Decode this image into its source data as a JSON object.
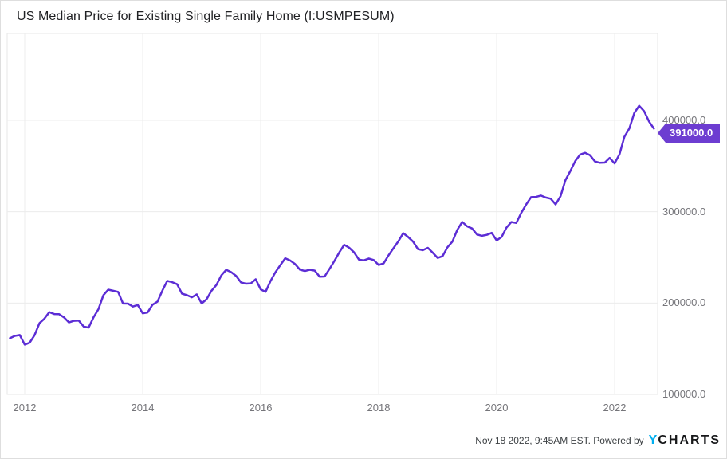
{
  "title": "US Median Price for Existing Single Family Home (I:USMPESUM)",
  "badge": {
    "value_label": "391000.0"
  },
  "attribution": {
    "text": "Nov 18 2022, 9:45AM EST. Powered by",
    "logo_y": "Y",
    "logo_charts": "CHARTS"
  },
  "colors": {
    "line": "#5c2dd5",
    "badge": "#6d3dd1",
    "grid": "#ececec",
    "plot_border": "#e7e7e7",
    "axis_text": "#75757a",
    "title_text": "#202124",
    "logo_y_blue": "#00aeef",
    "logo_charts_black": "#17181a"
  },
  "y_axis": {
    "tick_labels": [
      "400000.0",
      "300000.0",
      "200000.0",
      "100000.0"
    ],
    "tick_values": [
      400000,
      300000,
      200000,
      100000
    ]
  },
  "x_axis": {
    "tick_labels": [
      "2012",
      "2014",
      "2016",
      "2018",
      "2020",
      "2022"
    ],
    "tick_values": [
      2012,
      2014,
      2016,
      2018,
      2020,
      2022
    ]
  },
  "chart_data": {
    "type": "line",
    "title": "US Median Price for Existing Single Family Home (I:USMPESUM)",
    "series_name": "US Median Price for Existing Single Family Home",
    "frequency": "monthly",
    "xlim": [
      "2011-10",
      "2022-09"
    ],
    "ylim": [
      100000,
      495000
    ],
    "y_gridlines": [
      200000,
      300000,
      400000
    ],
    "grid": true,
    "legend": false,
    "last_value": 391000,
    "x": [
      "2011-10",
      "2011-11",
      "2011-12",
      "2012-01",
      "2012-02",
      "2012-03",
      "2012-04",
      "2012-05",
      "2012-06",
      "2012-07",
      "2012-08",
      "2012-09",
      "2012-10",
      "2012-11",
      "2012-12",
      "2013-01",
      "2013-02",
      "2013-03",
      "2013-04",
      "2013-05",
      "2013-06",
      "2013-07",
      "2013-08",
      "2013-09",
      "2013-10",
      "2013-11",
      "2013-12",
      "2014-01",
      "2014-02",
      "2014-03",
      "2014-04",
      "2014-05",
      "2014-06",
      "2014-07",
      "2014-08",
      "2014-09",
      "2014-10",
      "2014-11",
      "2014-12",
      "2015-01",
      "2015-02",
      "2015-03",
      "2015-04",
      "2015-05",
      "2015-06",
      "2015-07",
      "2015-08",
      "2015-09",
      "2015-10",
      "2015-11",
      "2015-12",
      "2016-01",
      "2016-02",
      "2016-03",
      "2016-04",
      "2016-05",
      "2016-06",
      "2016-07",
      "2016-08",
      "2016-09",
      "2016-10",
      "2016-11",
      "2016-12",
      "2017-01",
      "2017-02",
      "2017-03",
      "2017-04",
      "2017-05",
      "2017-06",
      "2017-07",
      "2017-08",
      "2017-09",
      "2017-10",
      "2017-11",
      "2017-12",
      "2018-01",
      "2018-02",
      "2018-03",
      "2018-04",
      "2018-05",
      "2018-06",
      "2018-07",
      "2018-08",
      "2018-09",
      "2018-10",
      "2018-11",
      "2018-12",
      "2019-01",
      "2019-02",
      "2019-03",
      "2019-04",
      "2019-05",
      "2019-06",
      "2019-07",
      "2019-08",
      "2019-09",
      "2019-10",
      "2019-11",
      "2019-12",
      "2020-01",
      "2020-02",
      "2020-03",
      "2020-04",
      "2020-05",
      "2020-06",
      "2020-07",
      "2020-08",
      "2020-09",
      "2020-10",
      "2020-11",
      "2020-12",
      "2021-01",
      "2021-02",
      "2021-03",
      "2021-04",
      "2021-05",
      "2021-06",
      "2021-07",
      "2021-08",
      "2021-09",
      "2021-10",
      "2021-11",
      "2021-12",
      "2022-01",
      "2022-02",
      "2022-03",
      "2022-04",
      "2022-05",
      "2022-06",
      "2022-07",
      "2022-08",
      "2022-09"
    ],
    "values": [
      161600,
      164100,
      165100,
      154600,
      156600,
      164800,
      178000,
      182900,
      190100,
      188000,
      187800,
      184300,
      178800,
      180600,
      180800,
      174300,
      173200,
      184300,
      193300,
      208700,
      214700,
      213500,
      212200,
      199500,
      199400,
      196200,
      197900,
      188900,
      189700,
      198200,
      201500,
      213600,
      224300,
      222900,
      220600,
      210300,
      208700,
      206300,
      209500,
      199600,
      204200,
      213500,
      219800,
      230300,
      236400,
      233900,
      229700,
      222600,
      221200,
      221600,
      226000,
      215000,
      212300,
      224000,
      233700,
      241500,
      249000,
      246600,
      242700,
      236600,
      235100,
      236500,
      235500,
      228900,
      229100,
      237300,
      246100,
      255600,
      263800,
      260600,
      255500,
      247600,
      246800,
      248800,
      247100,
      241700,
      243400,
      252100,
      259900,
      267500,
      276500,
      272300,
      267300,
      259100,
      257900,
      260500,
      255200,
      249400,
      251400,
      261100,
      267300,
      280200,
      288800,
      284000,
      281700,
      275100,
      273600,
      274700,
      276900,
      268600,
      272300,
      282500,
      288700,
      287700,
      298600,
      307800,
      315900,
      316200,
      317700,
      315500,
      314300,
      308000,
      317100,
      334500,
      344600,
      355500,
      362600,
      364500,
      361800,
      355000,
      353500,
      353800,
      358800,
      352800,
      363000,
      382000,
      391200,
      408000,
      416000,
      410000,
      398800,
      391000
    ]
  }
}
